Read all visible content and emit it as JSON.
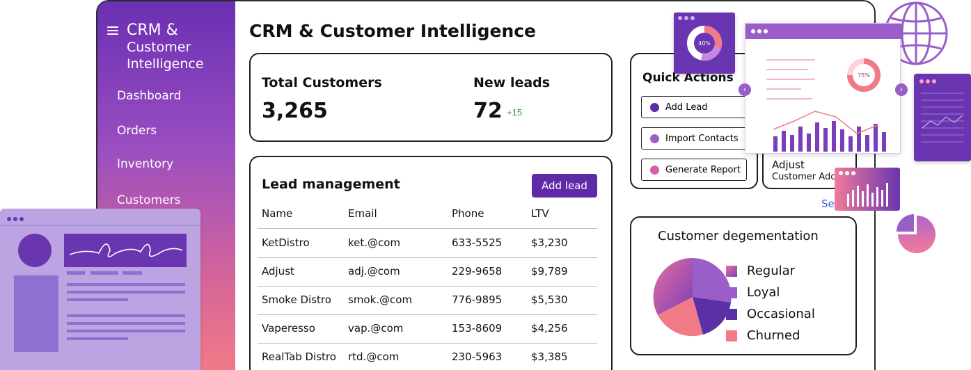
{
  "app": {
    "title_line1": "CRM &",
    "title_line2": "Customer",
    "title_line3": "Intelligence"
  },
  "nav": [
    {
      "label": "Dashboard"
    },
    {
      "label": "Orders"
    },
    {
      "label": "Inventory"
    },
    {
      "label": "Customers"
    }
  ],
  "page": {
    "title": "CRM & Customer Intelligence"
  },
  "stats": {
    "total_label": "Total Customers",
    "total_value": "3,265",
    "leads_label": "New leads",
    "leads_value": "72",
    "leads_delta": "+15"
  },
  "leads": {
    "title": "Lead management",
    "add_button": "Add lead",
    "columns": [
      "Name",
      "Email",
      "Phone",
      "LTV"
    ],
    "rows": [
      [
        "KetDistro",
        "ket.@com",
        "633-5525",
        "$3,230"
      ],
      [
        "Adjust",
        "adj.@com",
        "229-9658",
        "$9,789"
      ],
      [
        "Smoke Distro",
        "smok.@com",
        "776-9895",
        "$5,530"
      ],
      [
        "Vaperesso",
        "vap.@com",
        "153-8609",
        "$4,256"
      ],
      [
        "RealTab Distro",
        "rtd.@com",
        "230-5963",
        "$3,385"
      ]
    ]
  },
  "quick_actions": {
    "title": "Quick Actions",
    "items": [
      {
        "label": "Add Lead",
        "color": "#5e2aa8"
      },
      {
        "label": "Import Contacts",
        "color": "#9a5ec9"
      },
      {
        "label": "Generate Report",
        "color": "#d45fa6"
      }
    ]
  },
  "adjust_card": {
    "title": "Adjust",
    "subtitle": "Customer Adc"
  },
  "see_link": "Se",
  "segmentation": {
    "title": "Customer degementation",
    "legend": [
      {
        "label": "Regular",
        "color": "#c159a9"
      },
      {
        "label": "Loyal",
        "color": "#9a5ec9"
      },
      {
        "label": "Occasional",
        "color": "#5b2fa8"
      },
      {
        "label": "Churned",
        "color": "#f07a85"
      }
    ]
  },
  "decor": {
    "donut_small": "40%",
    "donut_big": "75%"
  },
  "colors": {
    "brand": "#5e2aa8",
    "accent_pink": "#f07a85",
    "positive": "#2e9b3c"
  }
}
